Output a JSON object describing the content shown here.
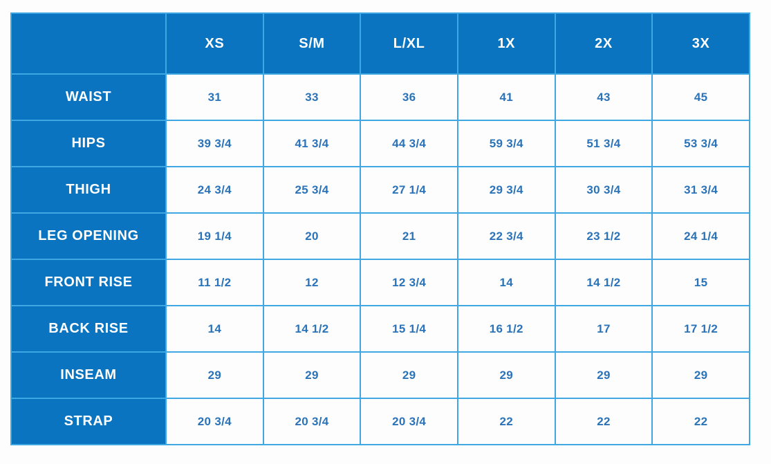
{
  "colors": {
    "fill_blue": "#0a74c0",
    "border_blue": "#3fa8e2",
    "value_text_blue": "#2b73b8",
    "header_text": "#ffffff",
    "cell_background": "#fdfdfd"
  },
  "chart_data": {
    "type": "table",
    "title": "",
    "corner_label": "",
    "columns": [
      "XS",
      "S/M",
      "L/XL",
      "1X",
      "2X",
      "3X"
    ],
    "rows": [
      {
        "label": "WAIST",
        "values": [
          "31",
          "33",
          "36",
          "41",
          "43",
          "45"
        ]
      },
      {
        "label": "HIPS",
        "values": [
          "39 3/4",
          "41 3/4",
          "44 3/4",
          "59 3/4",
          "51 3/4",
          "53 3/4"
        ]
      },
      {
        "label": "THIGH",
        "values": [
          "24 3/4",
          "25 3/4",
          "27 1/4",
          "29 3/4",
          "30 3/4",
          "31 3/4"
        ]
      },
      {
        "label": "LEG OPENING",
        "values": [
          "19 1/4",
          "20",
          "21",
          "22 3/4",
          "23 1/2",
          "24 1/4"
        ]
      },
      {
        "label": "FRONT RISE",
        "values": [
          "11 1/2",
          "12",
          "12 3/4",
          "14",
          "14 1/2",
          "15"
        ]
      },
      {
        "label": "BACK RISE",
        "values": [
          "14",
          "14 1/2",
          "15 1/4",
          "16 1/2",
          "17",
          "17 1/2"
        ]
      },
      {
        "label": "INSEAM",
        "values": [
          "29",
          "29",
          "29",
          "29",
          "29",
          "29"
        ]
      },
      {
        "label": "STRAP",
        "values": [
          "20 3/4",
          "20 3/4",
          "20 3/4",
          "22",
          "22",
          "22"
        ]
      }
    ]
  }
}
